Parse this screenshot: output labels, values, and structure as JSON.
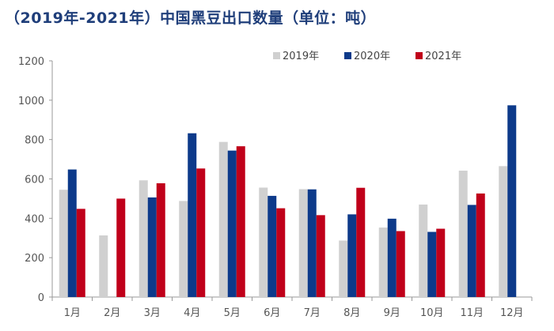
{
  "chart_data": {
    "type": "bar",
    "title": "（2019年-2021年）中国黑豆出口数量（单位：吨）",
    "categories": [
      "1月",
      "2月",
      "3月",
      "4月",
      "5月",
      "6月",
      "7月",
      "8月",
      "9月",
      "10月",
      "11月",
      "12月"
    ],
    "series": [
      {
        "name": "2019年",
        "color": "#d0d0d0",
        "values": [
          545,
          313,
          593,
          488,
          788,
          556,
          548,
          287,
          353,
          470,
          642,
          665
        ]
      },
      {
        "name": "2020年",
        "color": "#0d3a8a",
        "values": [
          648,
          null,
          506,
          832,
          744,
          514,
          547,
          420,
          398,
          331,
          468,
          974
        ]
      },
      {
        "name": "2021年",
        "color": "#c0001a",
        "values": [
          448,
          500,
          578,
          653,
          766,
          451,
          416,
          555,
          335,
          347,
          526,
          null
        ]
      }
    ],
    "ylim": [
      0,
      1200
    ],
    "yticks": [
      0,
      200,
      400,
      600,
      800,
      1000,
      1200
    ],
    "legend_position": "top-right",
    "grid": false
  }
}
